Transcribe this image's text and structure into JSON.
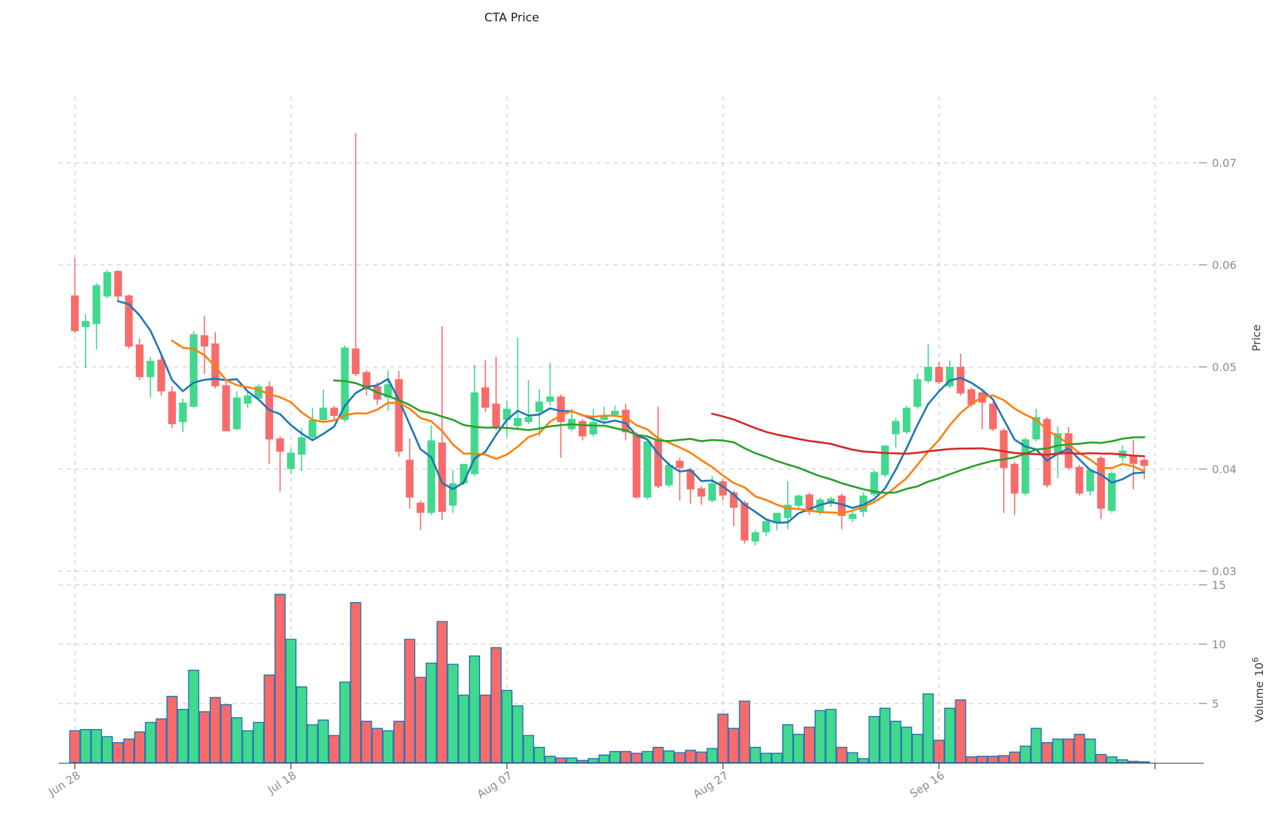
{
  "chart_data": {
    "type": "candlestick",
    "title": "CTA Price",
    "price_axis": {
      "label": "Price",
      "ticks": [
        0.07,
        0.06,
        0.05,
        0.04,
        0.03
      ]
    },
    "volume_axis": {
      "label": "Volume",
      "exp_base": "10",
      "exp_power": "6",
      "ticks": [
        15,
        10,
        5
      ]
    },
    "x_axis": {
      "ticks": [
        {
          "label": "Jun 28",
          "index": 0
        },
        {
          "label": "Jul 18",
          "index": 20
        },
        {
          "label": "Aug 07",
          "index": 40
        },
        {
          "label": "Aug 27",
          "index": 60
        },
        {
          "label": "Sep 16",
          "index": 80
        }
      ],
      "unlabeled_gridline_index": 100
    },
    "ylim_price": [
      0.0295,
      0.0765
    ],
    "ylim_volume": [
      0,
      22
    ],
    "grid": "dashed",
    "candles_ohlc": [
      [
        0.057,
        0.0607,
        0.0533,
        0.0535
      ],
      [
        0.0539,
        0.0552,
        0.0499,
        0.0545
      ],
      [
        0.0542,
        0.0582,
        0.0517,
        0.058
      ],
      [
        0.0569,
        0.0595,
        0.0567,
        0.0593
      ],
      [
        0.0594,
        0.0595,
        0.0564,
        0.0569
      ],
      [
        0.057,
        0.0571,
        0.0518,
        0.052
      ],
      [
        0.0522,
        0.0528,
        0.0487,
        0.049
      ],
      [
        0.049,
        0.051,
        0.047,
        0.0506
      ],
      [
        0.0507,
        0.0512,
        0.0472,
        0.0476
      ],
      [
        0.0476,
        0.0481,
        0.044,
        0.0444
      ],
      [
        0.0446,
        0.0469,
        0.0436,
        0.0465
      ],
      [
        0.0461,
        0.0535,
        0.046,
        0.0532
      ],
      [
        0.0531,
        0.055,
        0.0493,
        0.052
      ],
      [
        0.0523,
        0.0534,
        0.0479,
        0.0481
      ],
      [
        0.0482,
        0.0487,
        0.0437,
        0.0437
      ],
      [
        0.0439,
        0.0476,
        0.0438,
        0.047
      ],
      [
        0.0464,
        0.0475,
        0.046,
        0.0472
      ],
      [
        0.0469,
        0.0483,
        0.0468,
        0.0481
      ],
      [
        0.0481,
        0.0486,
        0.0405,
        0.0429
      ],
      [
        0.043,
        0.0432,
        0.0378,
        0.0417
      ],
      [
        0.04,
        0.042,
        0.0395,
        0.0416
      ],
      [
        0.0414,
        0.044,
        0.0398,
        0.0431
      ],
      [
        0.0431,
        0.046,
        0.0428,
        0.0448
      ],
      [
        0.0448,
        0.0478,
        0.0445,
        0.046
      ],
      [
        0.046,
        0.0462,
        0.0448,
        0.0452
      ],
      [
        0.0448,
        0.0521,
        0.0446,
        0.0519
      ],
      [
        0.0518,
        0.0729,
        0.0491,
        0.0493
      ],
      [
        0.0495,
        0.0497,
        0.0472,
        0.0478
      ],
      [
        0.0481,
        0.0485,
        0.0463,
        0.0468
      ],
      [
        0.047,
        0.0497,
        0.0457,
        0.0483
      ],
      [
        0.0488,
        0.0496,
        0.0412,
        0.0417
      ],
      [
        0.0409,
        0.043,
        0.0361,
        0.0372
      ],
      [
        0.0367,
        0.0369,
        0.034,
        0.0357
      ],
      [
        0.0357,
        0.0443,
        0.0355,
        0.0428
      ],
      [
        0.0426,
        0.054,
        0.035,
        0.0358
      ],
      [
        0.0364,
        0.0399,
        0.0357,
        0.0386
      ],
      [
        0.0386,
        0.0405,
        0.0384,
        0.0405
      ],
      [
        0.0395,
        0.0502,
        0.0393,
        0.0475
      ],
      [
        0.048,
        0.0507,
        0.0456,
        0.046
      ],
      [
        0.0464,
        0.051,
        0.0438,
        0.0441
      ],
      [
        0.0448,
        0.0467,
        0.0431,
        0.0459
      ],
      [
        0.0442,
        0.0529,
        0.0438,
        0.045
      ],
      [
        0.0446,
        0.0487,
        0.0444,
        0.0451
      ],
      [
        0.0456,
        0.0478,
        0.0432,
        0.0466
      ],
      [
        0.0466,
        0.0504,
        0.0462,
        0.0471
      ],
      [
        0.0471,
        0.0473,
        0.0411,
        0.0446
      ],
      [
        0.0439,
        0.0459,
        0.0437,
        0.0449
      ],
      [
        0.0447,
        0.0449,
        0.0428,
        0.0432
      ],
      [
        0.0434,
        0.0459,
        0.0432,
        0.0446
      ],
      [
        0.0448,
        0.0461,
        0.0446,
        0.0453
      ],
      [
        0.0453,
        0.0462,
        0.0451,
        0.0457
      ],
      [
        0.0458,
        0.0464,
        0.0428,
        0.0436
      ],
      [
        0.0434,
        0.0436,
        0.0371,
        0.0372
      ],
      [
        0.0372,
        0.0429,
        0.037,
        0.0427
      ],
      [
        0.0428,
        0.0461,
        0.0381,
        0.0383
      ],
      [
        0.0384,
        0.0407,
        0.0382,
        0.0404
      ],
      [
        0.0408,
        0.0411,
        0.0369,
        0.0401
      ],
      [
        0.0399,
        0.0401,
        0.0366,
        0.038
      ],
      [
        0.0381,
        0.0383,
        0.0365,
        0.0373
      ],
      [
        0.0369,
        0.0393,
        0.0367,
        0.0386
      ],
      [
        0.0388,
        0.039,
        0.0369,
        0.0374
      ],
      [
        0.0377,
        0.0379,
        0.0344,
        0.0362
      ],
      [
        0.0367,
        0.0369,
        0.0327,
        0.033
      ],
      [
        0.0329,
        0.034,
        0.0325,
        0.0338
      ],
      [
        0.0338,
        0.0352,
        0.0334,
        0.0349
      ],
      [
        0.0347,
        0.0357,
        0.034,
        0.0357
      ],
      [
        0.0352,
        0.0388,
        0.0341,
        0.0365
      ],
      [
        0.0364,
        0.0375,
        0.036,
        0.0374
      ],
      [
        0.0375,
        0.0377,
        0.0355,
        0.0358
      ],
      [
        0.0358,
        0.0372,
        0.0355,
        0.037
      ],
      [
        0.0366,
        0.0373,
        0.0363,
        0.0371
      ],
      [
        0.0374,
        0.0376,
        0.0341,
        0.0354
      ],
      [
        0.0351,
        0.0358,
        0.0348,
        0.0356
      ],
      [
        0.0358,
        0.0377,
        0.0353,
        0.0374
      ],
      [
        0.0375,
        0.0399,
        0.0373,
        0.0397
      ],
      [
        0.0394,
        0.0423,
        0.0392,
        0.0423
      ],
      [
        0.0434,
        0.045,
        0.0421,
        0.0447
      ],
      [
        0.0436,
        0.0462,
        0.0434,
        0.046
      ],
      [
        0.0461,
        0.0493,
        0.0459,
        0.0488
      ],
      [
        0.0486,
        0.0522,
        0.0484,
        0.05
      ],
      [
        0.05,
        0.0505,
        0.0483,
        0.0485
      ],
      [
        0.0481,
        0.0506,
        0.0479,
        0.05
      ],
      [
        0.05,
        0.0513,
        0.0472,
        0.0474
      ],
      [
        0.0478,
        0.048,
        0.0461,
        0.0463
      ],
      [
        0.0475,
        0.0477,
        0.0439,
        0.0465
      ],
      [
        0.0464,
        0.0466,
        0.0437,
        0.0439
      ],
      [
        0.0438,
        0.044,
        0.0357,
        0.0401
      ],
      [
        0.0405,
        0.0407,
        0.0355,
        0.0376
      ],
      [
        0.0376,
        0.0431,
        0.0374,
        0.0429
      ],
      [
        0.0429,
        0.0459,
        0.0427,
        0.0451
      ],
      [
        0.0449,
        0.0451,
        0.0382,
        0.0384
      ],
      [
        0.0415,
        0.0442,
        0.0391,
        0.0435
      ],
      [
        0.0435,
        0.0441,
        0.0399,
        0.0401
      ],
      [
        0.0402,
        0.0404,
        0.0374,
        0.0376
      ],
      [
        0.0378,
        0.0401,
        0.0374,
        0.0399
      ],
      [
        0.0411,
        0.0413,
        0.0351,
        0.0361
      ],
      [
        0.0359,
        0.0398,
        0.0357,
        0.0396
      ],
      [
        0.0411,
        0.0423,
        0.0407,
        0.0418
      ],
      [
        0.0413,
        0.0428,
        0.038,
        0.0405
      ],
      [
        0.0409,
        0.0411,
        0.039,
        0.0403
      ]
    ],
    "volumes_millions": [
      2.7,
      2.8,
      2.8,
      2.2,
      1.7,
      2.0,
      2.6,
      3.4,
      3.7,
      5.6,
      4.5,
      7.8,
      4.3,
      5.5,
      4.9,
      3.8,
      2.7,
      3.4,
      7.4,
      14.2,
      10.4,
      6.4,
      3.2,
      3.6,
      2.3,
      6.8,
      13.5,
      3.5,
      2.9,
      2.7,
      3.5,
      10.4,
      7.2,
      8.4,
      11.9,
      8.3,
      5.7,
      9.0,
      5.7,
      9.7,
      6.1,
      4.8,
      2.3,
      1.3,
      0.55,
      0.4,
      0.4,
      0.2,
      0.35,
      0.65,
      0.95,
      0.95,
      0.8,
      0.95,
      1.3,
      1.0,
      0.85,
      1.05,
      0.9,
      1.2,
      4.1,
      2.9,
      5.2,
      1.3,
      0.8,
      0.8,
      3.2,
      2.4,
      3.0,
      4.4,
      4.5,
      1.3,
      0.85,
      0.35,
      3.9,
      4.6,
      3.5,
      3.0,
      2.4,
      5.8,
      1.9,
      4.6,
      5.3,
      0.5,
      0.55,
      0.55,
      0.6,
      0.9,
      1.4,
      2.9,
      1.7,
      2.0,
      2.0,
      2.4,
      2.0,
      0.7,
      0.5,
      0.25,
      0.12,
      0.08
    ],
    "moving_averages": [
      {
        "name": "ma-fast",
        "window": 5,
        "color": "#1f77b4"
      },
      {
        "name": "ma-medium",
        "window": 10,
        "color": "#ff7f0e"
      },
      {
        "name": "ma-slow",
        "window": 25,
        "color": "#2ca02c"
      },
      {
        "name": "ma-long",
        "window": 60,
        "color": "#d62728"
      }
    ],
    "colors": {
      "up": "#41d98d",
      "down": "#f96b6b",
      "volume_edge": "#2878b5",
      "grid": "#cdcdcd",
      "tick_label": "#8b8b8b",
      "spine": "#333333",
      "title": "#1a1a1a"
    },
    "legend": "none"
  }
}
